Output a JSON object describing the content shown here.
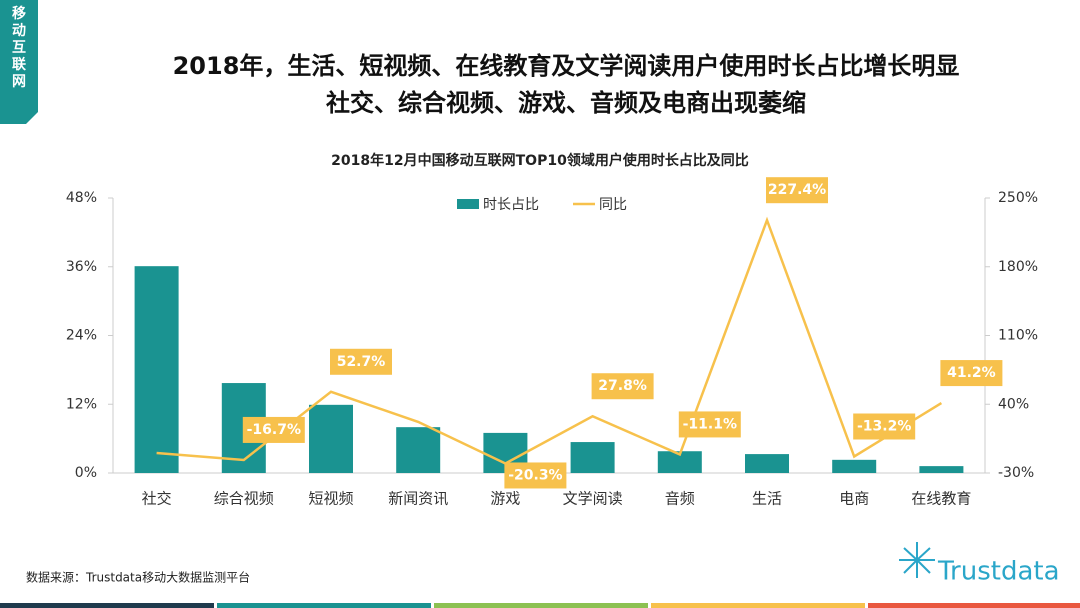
{
  "tab": "移动互联网",
  "chart_data": {
    "type": "combo",
    "title": [
      "2018年，生活、短视频、在线教育及文学阅读用户使用时长占比增长明显",
      "社交、综合视频、游戏、音频及电商出现萎缩"
    ],
    "subtitle": "2018年12月中国移动互联网TOP10领域用户使用时长占比及同比",
    "categories": [
      "社交",
      "综合视频",
      "短视频",
      "新闻资讯",
      "游戏",
      "文学阅读",
      "音频",
      "生活",
      "电商",
      "在线教育"
    ],
    "series": [
      {
        "name": "时长占比",
        "type": "bar",
        "color": "#1a9391",
        "values": [
          36.1,
          15.7,
          11.9,
          8.0,
          7.0,
          5.4,
          3.8,
          3.3,
          2.3,
          1.2
        ]
      },
      {
        "name": "同比",
        "type": "line",
        "axis": "y2",
        "color": "#f7c14c",
        "values": [
          -9.6,
          -16.7,
          52.7,
          22,
          -20.3,
          27.8,
          -11.1,
          227.4,
          -13.2,
          41.2
        ],
        "value_labels": [
          null,
          "-16.7%",
          "52.7%",
          null,
          "-20.3%",
          "27.8%",
          "-11.1%",
          "227.4%",
          "-13.2%",
          "41.2%"
        ]
      }
    ],
    "ylim": [
      0,
      48
    ],
    "yticks": [
      {
        "value": 0,
        "label": "0%"
      },
      {
        "value": 12,
        "label": "12%"
      },
      {
        "value": 24,
        "label": "24%"
      },
      {
        "value": 36,
        "label": "36%"
      },
      {
        "value": 48,
        "label": "48%"
      }
    ],
    "y2lim": [
      -30,
      250
    ],
    "y2ticks": [
      {
        "value": -30,
        "label": "-30%"
      },
      {
        "value": 40,
        "label": "40%"
      },
      {
        "value": 110,
        "label": "110%"
      },
      {
        "value": 180,
        "label": "180%"
      },
      {
        "value": 250,
        "label": "250%"
      }
    ],
    "legend": "top"
  },
  "source": "数据来源：Trustdata移动大数据监测平台",
  "logo": "Trustdata"
}
